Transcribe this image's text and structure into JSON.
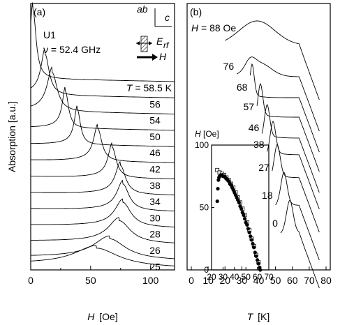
{
  "chart_data": [
    {
      "type": "line",
      "panel_label": "(a)",
      "sample": "U1",
      "frequency": "ν = 52.4 GHz",
      "xlabel_var": "H",
      "xlabel_unit": "[Oe]",
      "ylabel": "Absorption [a.u.]",
      "xlim": [
        0,
        120
      ],
      "xticks": [
        0,
        50,
        100
      ],
      "legend_prefix": "T = ",
      "legend_suffix": " K",
      "series": [
        {
          "name": "58.5",
          "peak_H": 2,
          "width": 3
        },
        {
          "name": "56",
          "peak_H": 12,
          "width": 4
        },
        {
          "name": "54",
          "peak_H": 18,
          "width": 5
        },
        {
          "name": "50",
          "peak_H": 29,
          "width": 3
        },
        {
          "name": "46",
          "peak_H": 39,
          "width": 3
        },
        {
          "name": "42",
          "peak_H": 56,
          "width": 4
        },
        {
          "name": "38",
          "peak_H": 68,
          "width": 4
        },
        {
          "name": "34",
          "peak_H": 75,
          "width": 5
        },
        {
          "name": "30",
          "peak_H": 77,
          "width": 6
        },
        {
          "name": "28",
          "peak_H": 77,
          "width": 8
        },
        {
          "name": "26",
          "peak_H": 74,
          "width": 11
        },
        {
          "name": "25",
          "peak_H": 66,
          "width": 16
        },
        {
          "name": "",
          "peak_H": 55,
          "width": 22
        }
      ],
      "geometry_labels": {
        "ab": "ab",
        "c": "c",
        "E": "E",
        "E_sub": "rf",
        "H": "H"
      }
    },
    {
      "type": "line",
      "panel_label": "(b)",
      "xlabel_var": "T",
      "xlabel_unit": "[K]",
      "xlim": [
        0,
        80
      ],
      "xticks": [
        0,
        10,
        20,
        30,
        40,
        50,
        60,
        70,
        80
      ],
      "legend_prefix": "H = ",
      "legend_suffix": " Oe",
      "series": [
        {
          "name": "88",
          "peak_T": 39,
          "kind": "broad"
        },
        {
          "name": "76",
          "peak_T": 35,
          "kind": "weak"
        },
        {
          "name": "68",
          "peak_T": 36,
          "kind": "peak"
        },
        {
          "name": "57",
          "peak_T": 41,
          "kind": "peak"
        },
        {
          "name": "46",
          "peak_T": 45,
          "kind": "peak"
        },
        {
          "name": "38",
          "peak_T": 48.5,
          "kind": "peak"
        },
        {
          "name": "27",
          "peak_T": 51,
          "kind": "peak"
        },
        {
          "name": "18",
          "peak_T": 55,
          "kind": "peak"
        },
        {
          "name": "0",
          "peak_T": 58.5,
          "kind": "peak"
        }
      ]
    },
    {
      "type": "scatter",
      "inset": true,
      "xlabel": "",
      "ylabel": "H [Oe]",
      "xlim": [
        20,
        70
      ],
      "ylim": [
        0,
        100
      ],
      "xticks": [
        20,
        30,
        40,
        50,
        60,
        70
      ],
      "yticks": [
        0,
        50,
        100
      ],
      "series": [
        {
          "name": "",
          "marker": "filled-circle",
          "x": [
            25,
            25.5,
            26,
            26.5,
            27,
            28,
            29,
            30,
            31,
            32,
            33,
            34,
            35,
            36,
            37,
            38,
            39,
            40,
            41,
            42,
            43,
            44,
            45,
            46,
            47,
            48,
            49,
            50,
            51,
            52,
            53,
            54,
            55,
            56,
            57,
            58,
            59,
            60,
            61,
            62,
            62.5
          ],
          "y": [
            55,
            65,
            72,
            74,
            75,
            76,
            76,
            75,
            75,
            74,
            73,
            72,
            71,
            69,
            68,
            66,
            64,
            62,
            60,
            58,
            56,
            54,
            51,
            49,
            46,
            44,
            41,
            38,
            36,
            33,
            30,
            27,
            24,
            21,
            18,
            14,
            11,
            8,
            5,
            2,
            0
          ]
        },
        {
          "name": "",
          "marker": "open-square",
          "x": [
            25,
            27,
            29,
            31,
            33,
            35,
            37,
            39,
            41,
            43,
            45,
            47,
            49,
            51,
            53,
            55,
            57,
            59,
            61
          ],
          "y": [
            80,
            78,
            77,
            76,
            74,
            72,
            69,
            66,
            62,
            58,
            54,
            49,
            44,
            38,
            32,
            25,
            19,
            12,
            6
          ]
        }
      ]
    }
  ]
}
